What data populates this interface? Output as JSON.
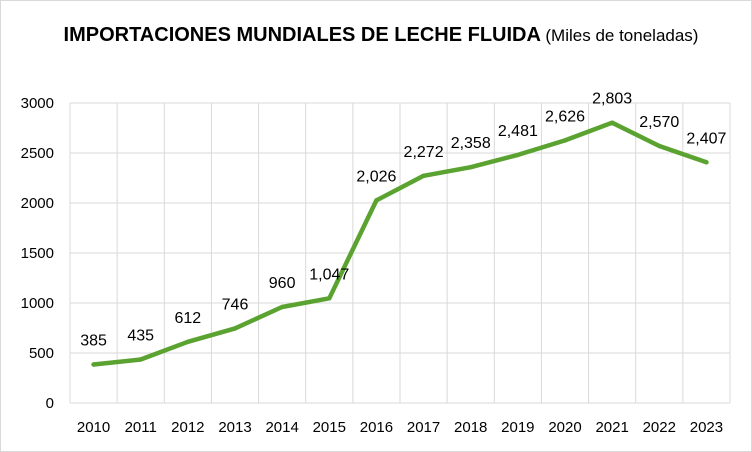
{
  "chart_data": {
    "type": "line",
    "title": "IMPORTACIONES MUNDIALES DE LECHE FLUIDA",
    "subtitle": "(Miles de toneladas)",
    "xlabel": "",
    "ylabel": "",
    "categories": [
      "2010",
      "2011",
      "2012",
      "2013",
      "2014",
      "2015",
      "2016",
      "2017",
      "2018",
      "2019",
      "2020",
      "2021",
      "2022",
      "2023"
    ],
    "series": [
      {
        "values": [
          385,
          435,
          612,
          746,
          960,
          1047,
          2026,
          2272,
          2358,
          2481,
          2626,
          2803,
          2570,
          2407
        ],
        "labels": [
          "385",
          "435",
          "612",
          "746",
          "960",
          "1,047",
          "2,026",
          "2,272",
          "2,358",
          "2,481",
          "2,626",
          "2,803",
          "2,570",
          "2,407"
        ]
      }
    ],
    "y_ticks": [
      "0",
      "500",
      "1000",
      "1500",
      "2000",
      "2500",
      "3000"
    ],
    "ylim": [
      0,
      3000
    ],
    "grid": true,
    "legend": "none",
    "colors": {
      "line": "#5BA331",
      "grid": "#d9d9d9",
      "text": "#000000"
    }
  }
}
